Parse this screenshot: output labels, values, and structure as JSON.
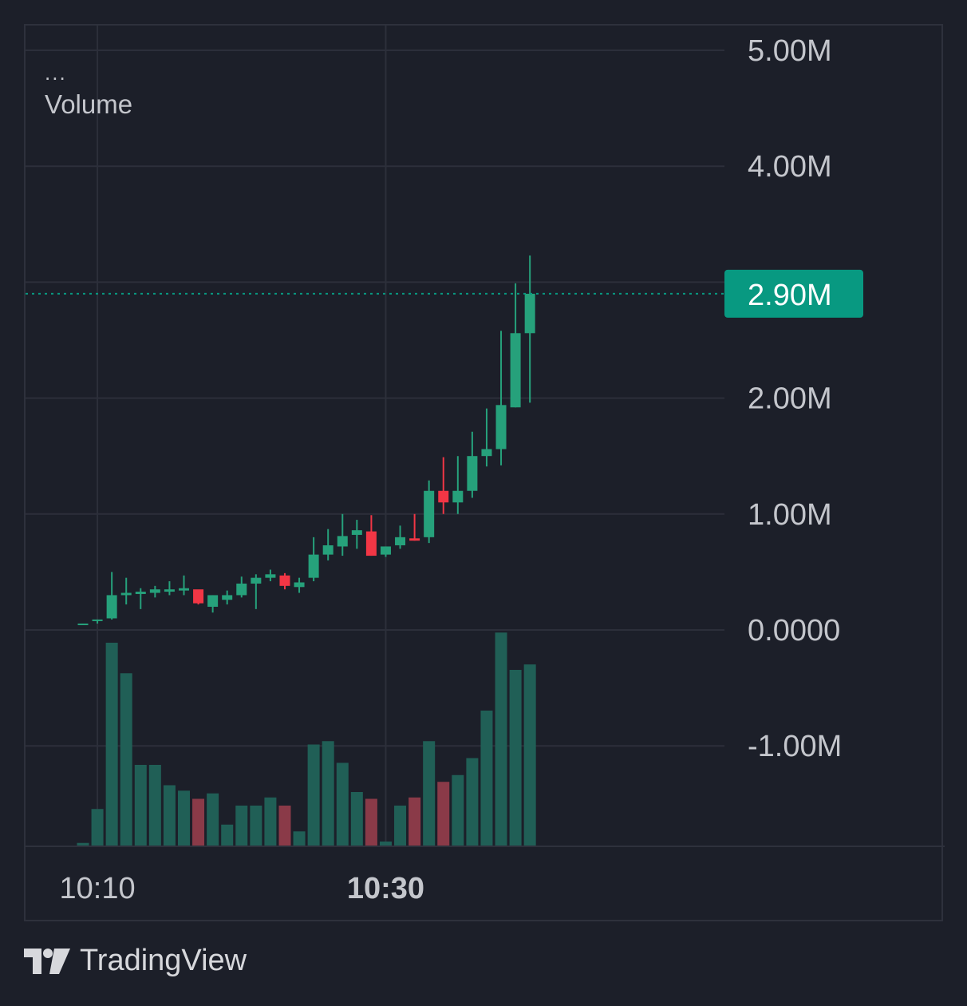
{
  "legend": {
    "menu_glyph": "...",
    "indicator_label": "Volume"
  },
  "brand": {
    "name": "TradingView",
    "logo_icon": "tradingview-logo-icon"
  },
  "colors": {
    "up": "#26a17b",
    "down": "#f23645",
    "up_volume": "#205f56",
    "down_volume": "#8a3a48",
    "last_price_label": "#089981"
  },
  "chart_data": {
    "type": "candlestick",
    "price_axis": {
      "ticks": [
        5000000,
        4000000,
        3000000,
        2000000,
        1000000,
        0,
        -1000000
      ],
      "tick_labels": [
        "5.00M",
        "4.00M",
        "",
        "2.00M",
        "1.00M",
        "0.0000",
        "-1.00M"
      ],
      "range": [
        -1850000,
        5150000
      ]
    },
    "time_axis": {
      "ticks": [
        1,
        21
      ],
      "tick_labels": [
        "10:10",
        "10:30"
      ],
      "bold": [
        false,
        true
      ]
    },
    "last_price": {
      "value": 2900000,
      "label": "2.90M"
    },
    "grid": true,
    "candles": [
      {
        "o": 50000,
        "h": 55000,
        "l": 45000,
        "c": 55000,
        "v": 5
      },
      {
        "o": 80000,
        "h": 90000,
        "l": 55000,
        "c": 90000,
        "v": 55
      },
      {
        "o": 100000,
        "h": 500000,
        "l": 90000,
        "c": 300000,
        "v": 300
      },
      {
        "o": 300000,
        "h": 450000,
        "l": 220000,
        "c": 320000,
        "v": 255
      },
      {
        "o": 310000,
        "h": 360000,
        "l": 180000,
        "c": 330000,
        "v": 120
      },
      {
        "o": 320000,
        "h": 380000,
        "l": 280000,
        "c": 350000,
        "v": 120
      },
      {
        "o": 330000,
        "h": 420000,
        "l": 300000,
        "c": 350000,
        "v": 90
      },
      {
        "o": 340000,
        "h": 470000,
        "l": 300000,
        "c": 360000,
        "v": 82
      },
      {
        "o": 350000,
        "h": 330000,
        "l": 220000,
        "c": 230000,
        "v": 70,
        "note": "down"
      },
      {
        "o": 200000,
        "h": 300000,
        "l": 150000,
        "c": 300000,
        "v": 78
      },
      {
        "o": 260000,
        "h": 340000,
        "l": 220000,
        "c": 300000,
        "v": 32
      },
      {
        "o": 300000,
        "h": 460000,
        "l": 280000,
        "c": 400000,
        "v": 60
      },
      {
        "o": 400000,
        "h": 480000,
        "l": 180000,
        "c": 450000,
        "v": 60
      },
      {
        "o": 450000,
        "h": 520000,
        "l": 420000,
        "c": 480000,
        "v": 72
      },
      {
        "o": 470000,
        "h": 490000,
        "l": 350000,
        "c": 380000,
        "v": 60,
        "note": "down"
      },
      {
        "o": 370000,
        "h": 450000,
        "l": 320000,
        "c": 410000,
        "v": 22
      },
      {
        "o": 450000,
        "h": 800000,
        "l": 420000,
        "c": 650000,
        "v": 150
      },
      {
        "o": 650000,
        "h": 870000,
        "l": 600000,
        "c": 730000,
        "v": 155
      },
      {
        "o": 720000,
        "h": 1000000,
        "l": 640000,
        "c": 810000,
        "v": 123
      },
      {
        "o": 820000,
        "h": 950000,
        "l": 700000,
        "c": 860000,
        "v": 80
      },
      {
        "o": 850000,
        "h": 990000,
        "l": 640000,
        "c": 640000,
        "v": 70,
        "note": "down"
      },
      {
        "o": 650000,
        "h": 720000,
        "l": 630000,
        "c": 720000,
        "v": 7
      },
      {
        "o": 730000,
        "h": 900000,
        "l": 700000,
        "c": 800000,
        "v": 60
      },
      {
        "o": 790000,
        "h": 1000000,
        "l": 770000,
        "c": 770000,
        "v": 72,
        "note": "down"
      },
      {
        "o": 800000,
        "h": 1290000,
        "l": 750000,
        "c": 1200000,
        "v": 155
      },
      {
        "o": 1200000,
        "h": 1490000,
        "l": 1000000,
        "c": 1100000,
        "v": 95,
        "note": "down"
      },
      {
        "o": 1100000,
        "h": 1500000,
        "l": 1000000,
        "c": 1200000,
        "v": 105
      },
      {
        "o": 1200000,
        "h": 1710000,
        "l": 1140000,
        "c": 1500000,
        "v": 130
      },
      {
        "o": 1500000,
        "h": 1910000,
        "l": 1410000,
        "c": 1560000,
        "v": 200
      },
      {
        "o": 1560000,
        "h": 2580000,
        "l": 1420000,
        "c": 1940000,
        "v": 315
      },
      {
        "o": 1920000,
        "h": 2990000,
        "l": 1930000,
        "c": 2560000,
        "v": 260
      },
      {
        "o": 2560000,
        "h": 3230000,
        "l": 1960000,
        "c": 2900000,
        "v": 268
      }
    ]
  }
}
